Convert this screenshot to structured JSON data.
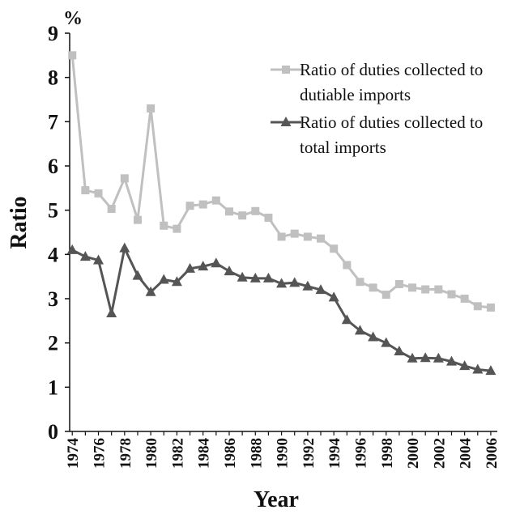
{
  "chart_data": {
    "type": "line",
    "title": "",
    "unit_label": "%",
    "xlabel": "Year",
    "ylabel": "Ratio",
    "ylim": [
      0,
      9
    ],
    "y_ticks": [
      "0",
      "1",
      "2",
      "3",
      "4",
      "5",
      "6",
      "7",
      "8",
      "9"
    ],
    "x_ticks": [
      "1974",
      "1976",
      "1978",
      "1980",
      "1982",
      "1984",
      "1986",
      "1988",
      "1990",
      "1992",
      "1994",
      "1996",
      "1998",
      "2000",
      "2002",
      "2004",
      "2006"
    ],
    "x": [
      1974,
      1975,
      1976,
      1977,
      1978,
      1979,
      1980,
      1981,
      1982,
      1983,
      1984,
      1985,
      1986,
      1987,
      1988,
      1989,
      1990,
      1991,
      1992,
      1993,
      1994,
      1995,
      1996,
      1997,
      1998,
      1999,
      2000,
      2001,
      2002,
      2003,
      2004,
      2005,
      2006
    ],
    "series": [
      {
        "name": "Ratio of duties collected to dutiable imports",
        "legend_lines": [
          "Ratio of duties collected to",
          "dutiable imports"
        ],
        "color": "#c0c0c0",
        "marker": "square",
        "values": [
          8.5,
          5.45,
          5.38,
          5.03,
          5.72,
          4.78,
          7.3,
          4.65,
          4.58,
          5.1,
          5.13,
          5.22,
          4.97,
          4.88,
          4.98,
          4.83,
          4.4,
          4.47,
          4.4,
          4.36,
          4.13,
          3.76,
          3.38,
          3.25,
          3.09,
          3.33,
          3.25,
          3.21,
          3.21,
          3.1,
          3.0,
          2.83,
          2.8
        ]
      },
      {
        "name": "Ratio of duties collected to total imports",
        "legend_lines": [
          "Ratio of duties collected to",
          "total imports"
        ],
        "color": "#555555",
        "marker": "triangle",
        "values": [
          4.1,
          3.95,
          3.87,
          2.67,
          4.14,
          3.52,
          3.15,
          3.43,
          3.38,
          3.68,
          3.73,
          3.8,
          3.62,
          3.48,
          3.46,
          3.46,
          3.34,
          3.36,
          3.28,
          3.2,
          3.03,
          2.52,
          2.28,
          2.13,
          2.0,
          1.81,
          1.65,
          1.66,
          1.65,
          1.58,
          1.48,
          1.4,
          1.37
        ]
      }
    ]
  }
}
